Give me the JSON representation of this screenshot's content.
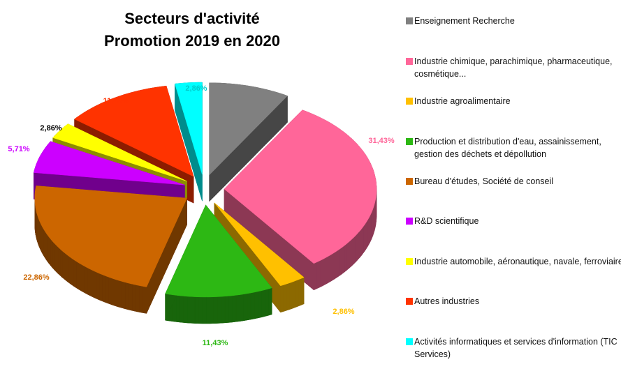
{
  "chart_data": {
    "type": "pie",
    "title": [
      "Secteurs d'activité",
      "Promotion 2019 en 2020"
    ],
    "legend_position": "right",
    "series": [
      {
        "name": "Enseignement Recherche",
        "value": 8.57,
        "label": "8,57%",
        "color": "#808080",
        "label_color": "#808080"
      },
      {
        "name": "Industrie chimique, parachimique, pharmaceutique, cosmétique...",
        "value": 31.43,
        "label": "31,43%",
        "color": "#FF6699",
        "label_color": "#FF6699"
      },
      {
        "name": "Industrie agroalimentaire",
        "value": 2.86,
        "label": "2,86%",
        "color": "#FFC000",
        "label_color": "#FFC000"
      },
      {
        "name": "Production et distribution d'eau, assainissement, gestion des déchets et dépollution",
        "value": 11.43,
        "label": "11,43%",
        "color": "#2DB814",
        "label_color": "#2DB814"
      },
      {
        "name": "Bureau d'études, Société de conseil",
        "value": 22.86,
        "label": "22,86%",
        "color": "#CC6600",
        "label_color": "#CC6600"
      },
      {
        "name": "R&D scientifique",
        "value": 5.71,
        "label": "5,71%",
        "color": "#CC00FF",
        "label_color": "#CC00FF"
      },
      {
        "name": "Industrie automobile, aéronautique, navale, ferroviaire",
        "value": 2.86,
        "label": "2,86%",
        "color": "#FFFF00",
        "label_color": "#000000"
      },
      {
        "name": "Autres industries",
        "value": 11.43,
        "label": "11,43%",
        "color": "#FF3300",
        "label_color": "#FF3300"
      },
      {
        "name": "Activités informatiques et services d'information (TIC Services)",
        "value": 2.86,
        "label": "2,86%",
        "color": "#00FFFF",
        "label_color": "#00CCCC"
      }
    ]
  }
}
